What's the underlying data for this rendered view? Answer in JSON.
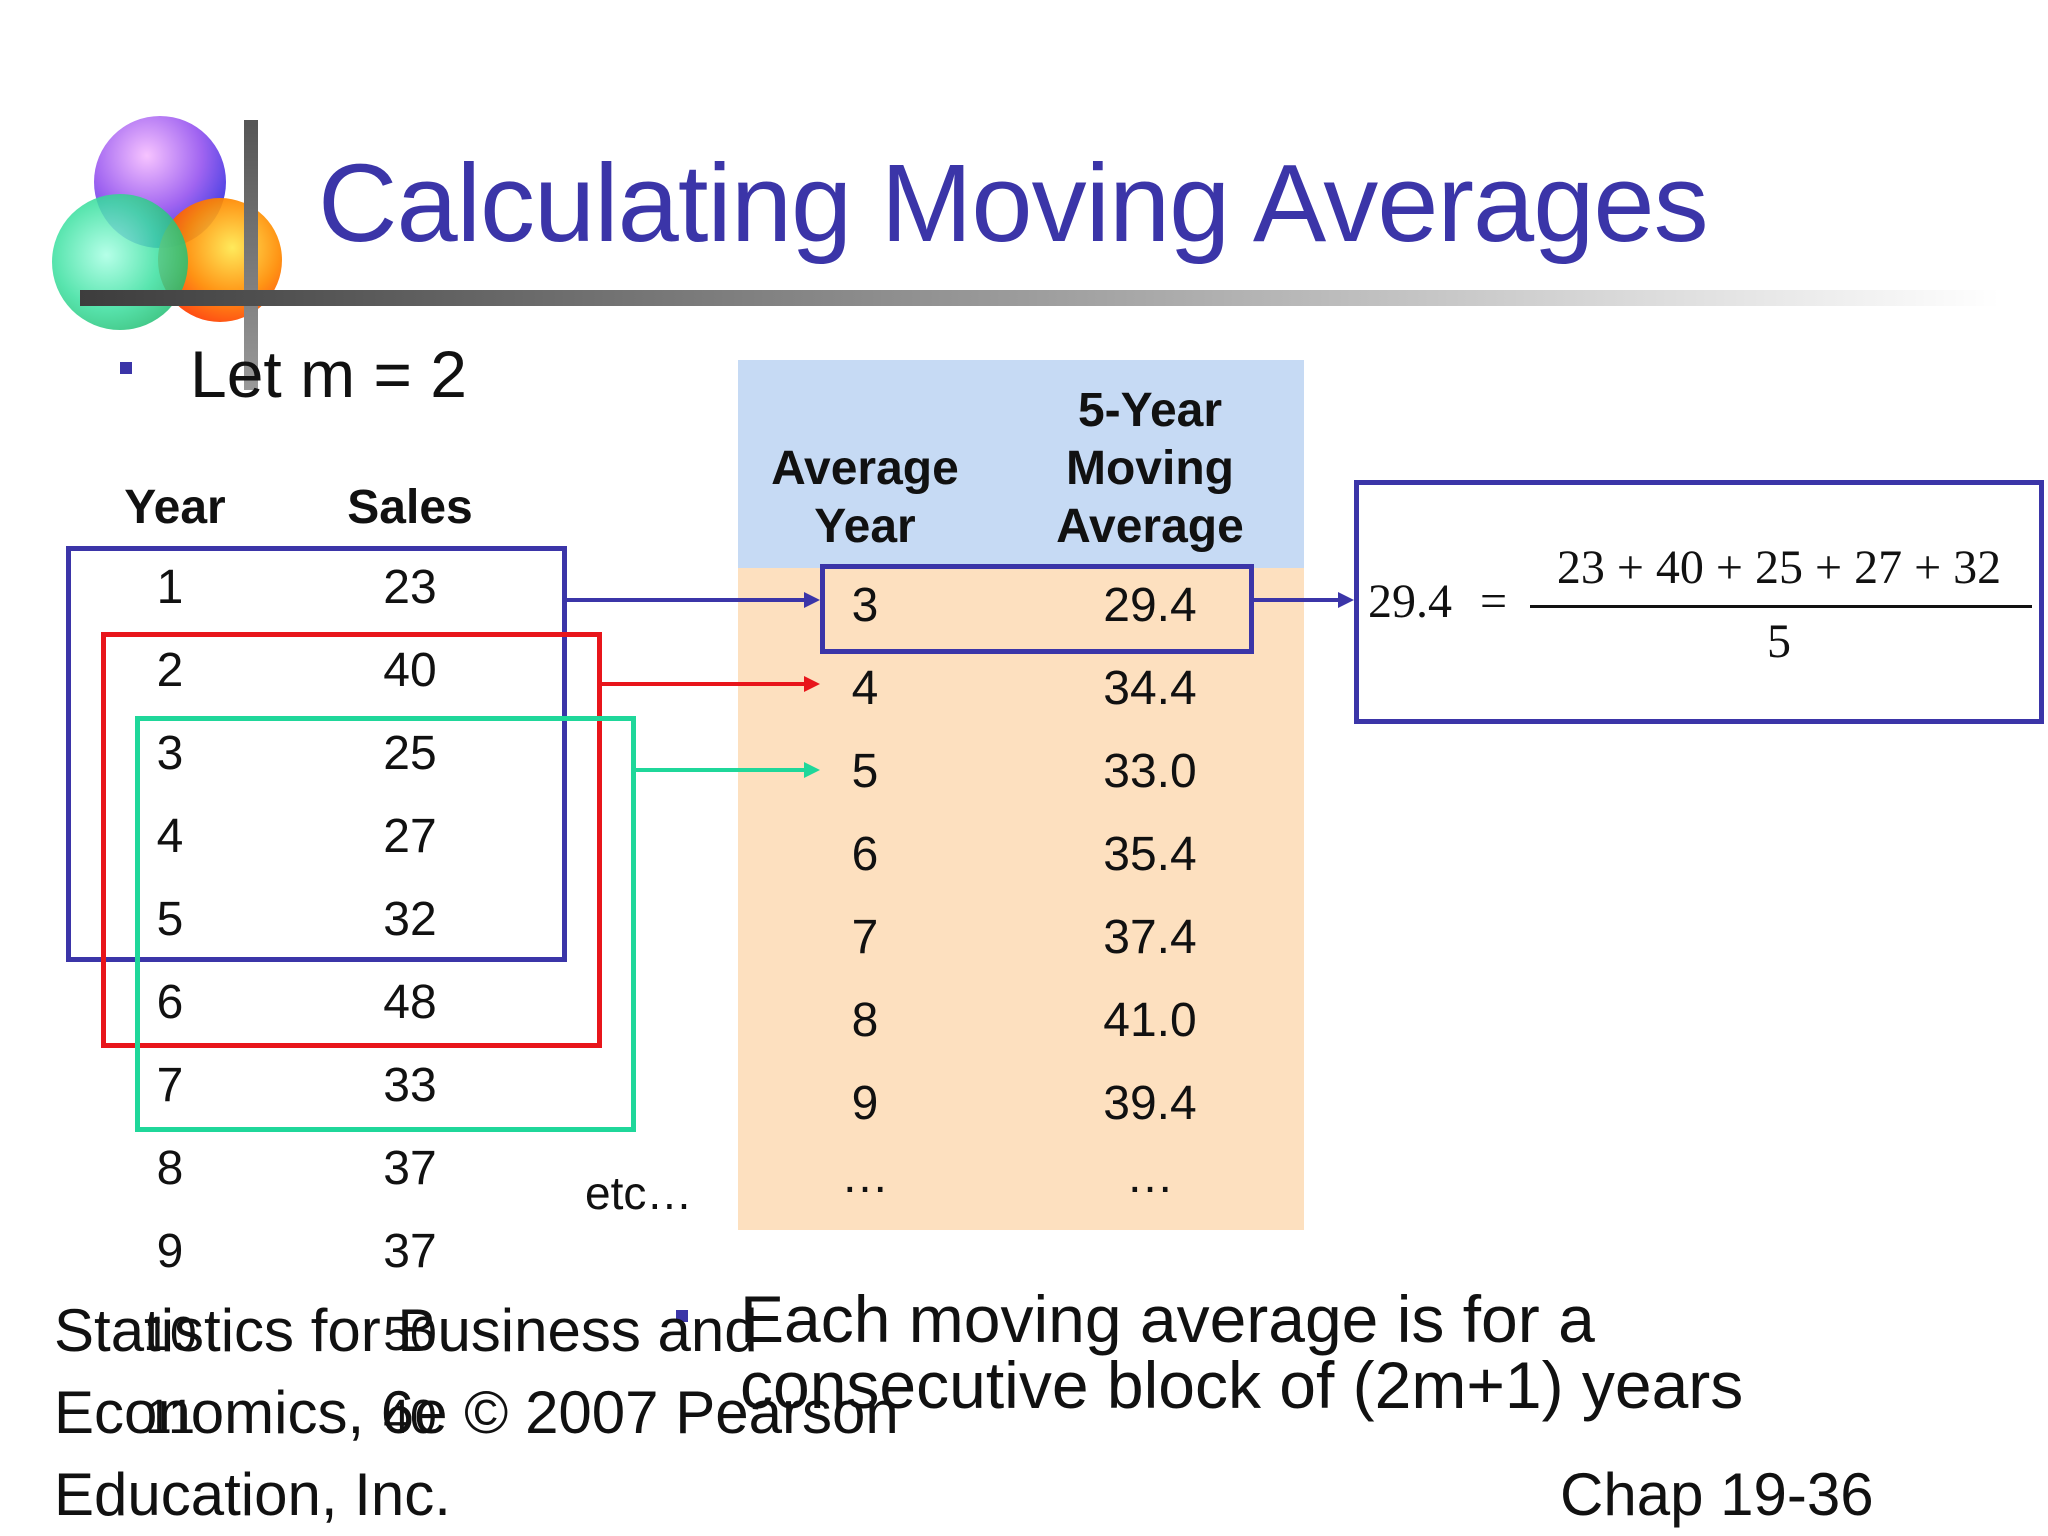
{
  "slide": {
    "title": "Calculating Moving Averages",
    "bullet": "Let m = 2",
    "note": "Each moving average is for a consecutive block of  (2m+1)  years",
    "etc": "etc…",
    "footer_left": [
      "Statistics for Business and",
      "Economics, 6e © 2007 Pearson",
      "Education, Inc."
    ],
    "footer_right": "Chap 19-36"
  },
  "left_table": {
    "headers": [
      "Year",
      "Sales"
    ],
    "rows": [
      [
        "1",
        "23"
      ],
      [
        "2",
        "40"
      ],
      [
        "3",
        "25"
      ],
      [
        "4",
        "27"
      ],
      [
        "5",
        "32"
      ],
      [
        "6",
        "48"
      ],
      [
        "7",
        "33"
      ],
      [
        "8",
        "37"
      ],
      [
        "9",
        "37"
      ],
      [
        "10",
        "50"
      ],
      [
        "11",
        "40"
      ]
    ]
  },
  "ma_table": {
    "header_year": [
      "Average",
      "Year"
    ],
    "header_avg": [
      "5-Year",
      "Moving",
      "Average"
    ],
    "rows": [
      [
        "3",
        "29.4"
      ],
      [
        "4",
        "34.4"
      ],
      [
        "5",
        "33.0"
      ],
      [
        "6",
        "35.4"
      ],
      [
        "7",
        "37.4"
      ],
      [
        "8",
        "41.0"
      ],
      [
        "9",
        "39.4"
      ],
      [
        "…",
        "…"
      ]
    ]
  },
  "formula": {
    "lhs": "29.4",
    "eq": "=",
    "numerator": "23 + 40 + 25 + 27 + 32",
    "denominator": "5"
  },
  "colors": {
    "title": "#3b35a8",
    "blue_box": "#3b35a8",
    "red_box": "#e8151b",
    "green_box": "#1fd79a",
    "header_fill": "#c6daf4",
    "body_fill": "#fde0bf"
  }
}
